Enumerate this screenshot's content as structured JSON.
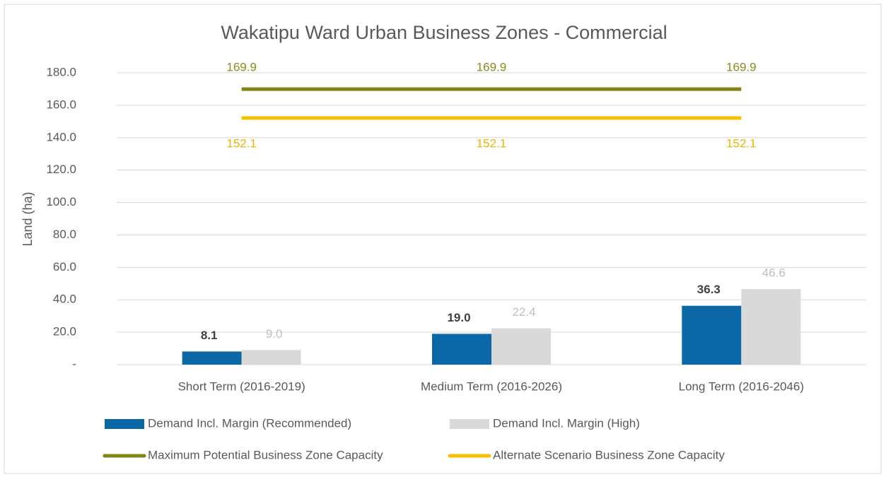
{
  "chart_data": {
    "type": "combo",
    "title": "Wakatipu Ward Urban Business Zones - Commercial",
    "y_label": "Land (ha)",
    "categories": [
      "Short Term (2016-2019)",
      "Medium Term (2016-2026)",
      "Long Term (2016-2046)"
    ],
    "series": [
      {
        "name": "Demand Incl. Margin (Recommended)",
        "type": "bar",
        "color": "#0b67a5",
        "label_color": "#404040",
        "values": [
          8.1,
          19,
          36.3
        ],
        "value_labels": [
          "8.1",
          "19.0",
          "36.3"
        ]
      },
      {
        "name": "Demand Incl. Margin (High)",
        "type": "bar",
        "color": "#d9d9d9",
        "label_color": "#bfbfbf",
        "values": [
          9,
          22.4,
          46.6
        ],
        "value_labels": [
          "9.0",
          "22.4",
          "46.6"
        ]
      },
      {
        "name": "Maximum Potential Business Zone Capacity",
        "type": "line",
        "color": "#848414",
        "label_color": "#8c8c1e",
        "label_position": "above",
        "values": [
          169.9,
          169.9,
          169.9
        ],
        "value_labels": [
          "169.9",
          "169.9",
          "169.9"
        ]
      },
      {
        "name": "Alternate Scenario Business Zone Capacity",
        "type": "line",
        "color": "#f5c000",
        "label_color": "#e9b400",
        "label_position": "below",
        "values": [
          152.1,
          152.1,
          152.1
        ],
        "value_labels": [
          "152.1",
          "152.1",
          "152.1"
        ]
      }
    ],
    "ylim": [
      0,
      180
    ],
    "yticks": [
      {
        "value": 0,
        "label": "-"
      },
      {
        "value": 20,
        "label": "20.0"
      },
      {
        "value": 40,
        "label": "40.0"
      },
      {
        "value": 60,
        "label": "60.0"
      },
      {
        "value": 80,
        "label": "80.0"
      },
      {
        "value": 100,
        "label": "100.0"
      },
      {
        "value": 120,
        "label": "120.0"
      },
      {
        "value": 140,
        "label": "140.0"
      },
      {
        "value": 160,
        "label": "160.0"
      },
      {
        "value": 180,
        "label": "180.0"
      }
    ],
    "grid": true,
    "legend": "bottom"
  }
}
